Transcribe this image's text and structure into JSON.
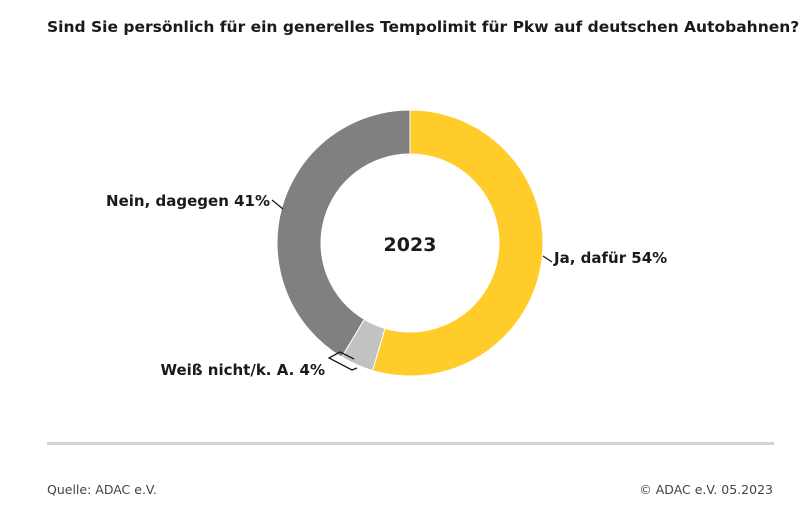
{
  "chart_data": {
    "type": "pie",
    "title": "Sind Sie persönlich für ein generelles Tempolimit für Pkw auf deutschen Autobahnen?",
    "center_label": "2023",
    "donut": true,
    "slices": [
      {
        "label": "Ja, dafür 54%",
        "category": "Ja, dafür",
        "value": 54,
        "color": "#ffcc29"
      },
      {
        "label": "Weiß nicht/k. A. 4%",
        "category": "Weiß nicht/k. A.",
        "value": 4,
        "color": "#c2c2c2"
      },
      {
        "label": "Nein, dagegen 41%",
        "category": "Nein, dagegen",
        "value": 41,
        "color": "#808080"
      }
    ]
  },
  "footer": {
    "source": "Quelle: ADAC e.V.",
    "copyright": "© ADAC e.V. 05.2023"
  }
}
